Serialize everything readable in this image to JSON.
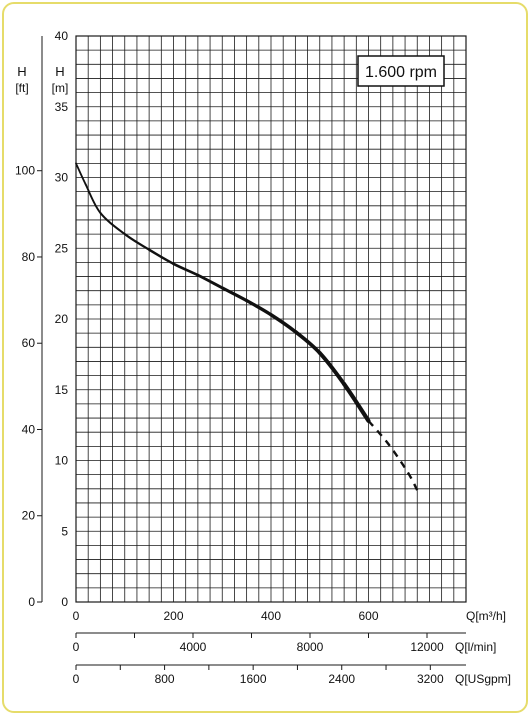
{
  "chart_data": {
    "type": "line",
    "speed_label": "1.600 rpm",
    "y_axis_m": {
      "label_top": "H",
      "label_unit": "[m]",
      "ylim": [
        0,
        40
      ],
      "ticks": [
        0,
        5,
        10,
        15,
        20,
        25,
        30,
        35,
        40
      ]
    },
    "y_axis_ft": {
      "label_top": "H",
      "label_unit": "[ft]",
      "ticks": [
        0,
        20,
        40,
        60,
        80,
        100
      ]
    },
    "x_axis_m3h": {
      "label": "Q[m³/h]",
      "xlim": [
        0,
        800
      ],
      "ticks": [
        0,
        200,
        400,
        600
      ]
    },
    "x_axis_lmin": {
      "label": "Q[l/min]",
      "ticks": [
        0,
        4000,
        8000,
        12000
      ]
    },
    "x_axis_usgpm": {
      "label": "Q[USgpm]",
      "ticks": [
        0,
        800,
        1600,
        2400,
        3200
      ]
    },
    "series": [
      {
        "style": "solid",
        "points": [
          [
            0,
            31
          ],
          [
            20,
            29.5
          ],
          [
            50,
            27.5
          ],
          [
            100,
            26
          ],
          [
            150,
            24.9
          ],
          [
            200,
            23.9
          ],
          [
            250,
            23.1
          ],
          [
            300,
            22.2
          ],
          [
            350,
            21.3
          ],
          [
            400,
            20.3
          ],
          [
            450,
            19.1
          ],
          [
            500,
            17.6
          ],
          [
            550,
            15.4
          ],
          [
            600,
            12.8
          ]
        ]
      },
      {
        "style": "dashed",
        "points": [
          [
            600,
            12.8
          ],
          [
            640,
            11.2
          ],
          [
            680,
            9.2
          ],
          [
            700,
            7.9
          ]
        ]
      }
    ]
  },
  "colors": {
    "frame": "#e6dc6a",
    "grid": "#1a1a1a",
    "curve": "#111111"
  }
}
